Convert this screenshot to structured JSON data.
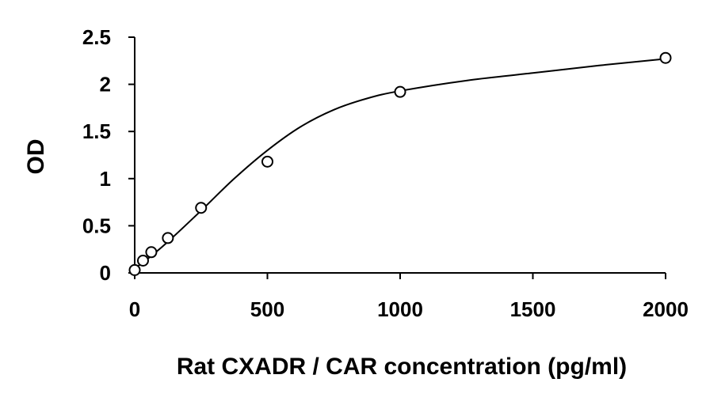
{
  "chart_data": {
    "type": "scatter",
    "title": "",
    "xlabel": "Rat CXADR / CAR concentration (pg/ml)",
    "ylabel": "OD",
    "xlim": [
      0,
      2000
    ],
    "ylim": [
      0,
      2.5
    ],
    "x_ticks": [
      0,
      500,
      1000,
      1500,
      2000
    ],
    "y_ticks": [
      0,
      0.5,
      1,
      1.5,
      2,
      2.5
    ],
    "x_tick_labels": [
      "0",
      "500",
      "1000",
      "1500",
      "2000"
    ],
    "y_tick_labels": [
      "0",
      "0.5",
      "1",
      "1.5",
      "2",
      "2.5"
    ],
    "grid": false,
    "legend": "none",
    "marker": "open-circle",
    "series": [
      {
        "x": [
          0,
          31.25,
          62.5,
          125,
          250,
          500,
          1000,
          2000
        ],
        "y": [
          0.03,
          0.13,
          0.22,
          0.37,
          0.69,
          1.18,
          1.92,
          2.28
        ]
      }
    ],
    "fit_curve": {
      "x": [
        0,
        31.25,
        62.5,
        125,
        250,
        375,
        500,
        625,
        750,
        875,
        1000,
        1250,
        1500,
        1750,
        2000
      ],
      "y": [
        0.05,
        0.11,
        0.18,
        0.33,
        0.66,
        1.0,
        1.3,
        1.55,
        1.73,
        1.85,
        1.93,
        2.04,
        2.12,
        2.2,
        2.27
      ]
    }
  }
}
